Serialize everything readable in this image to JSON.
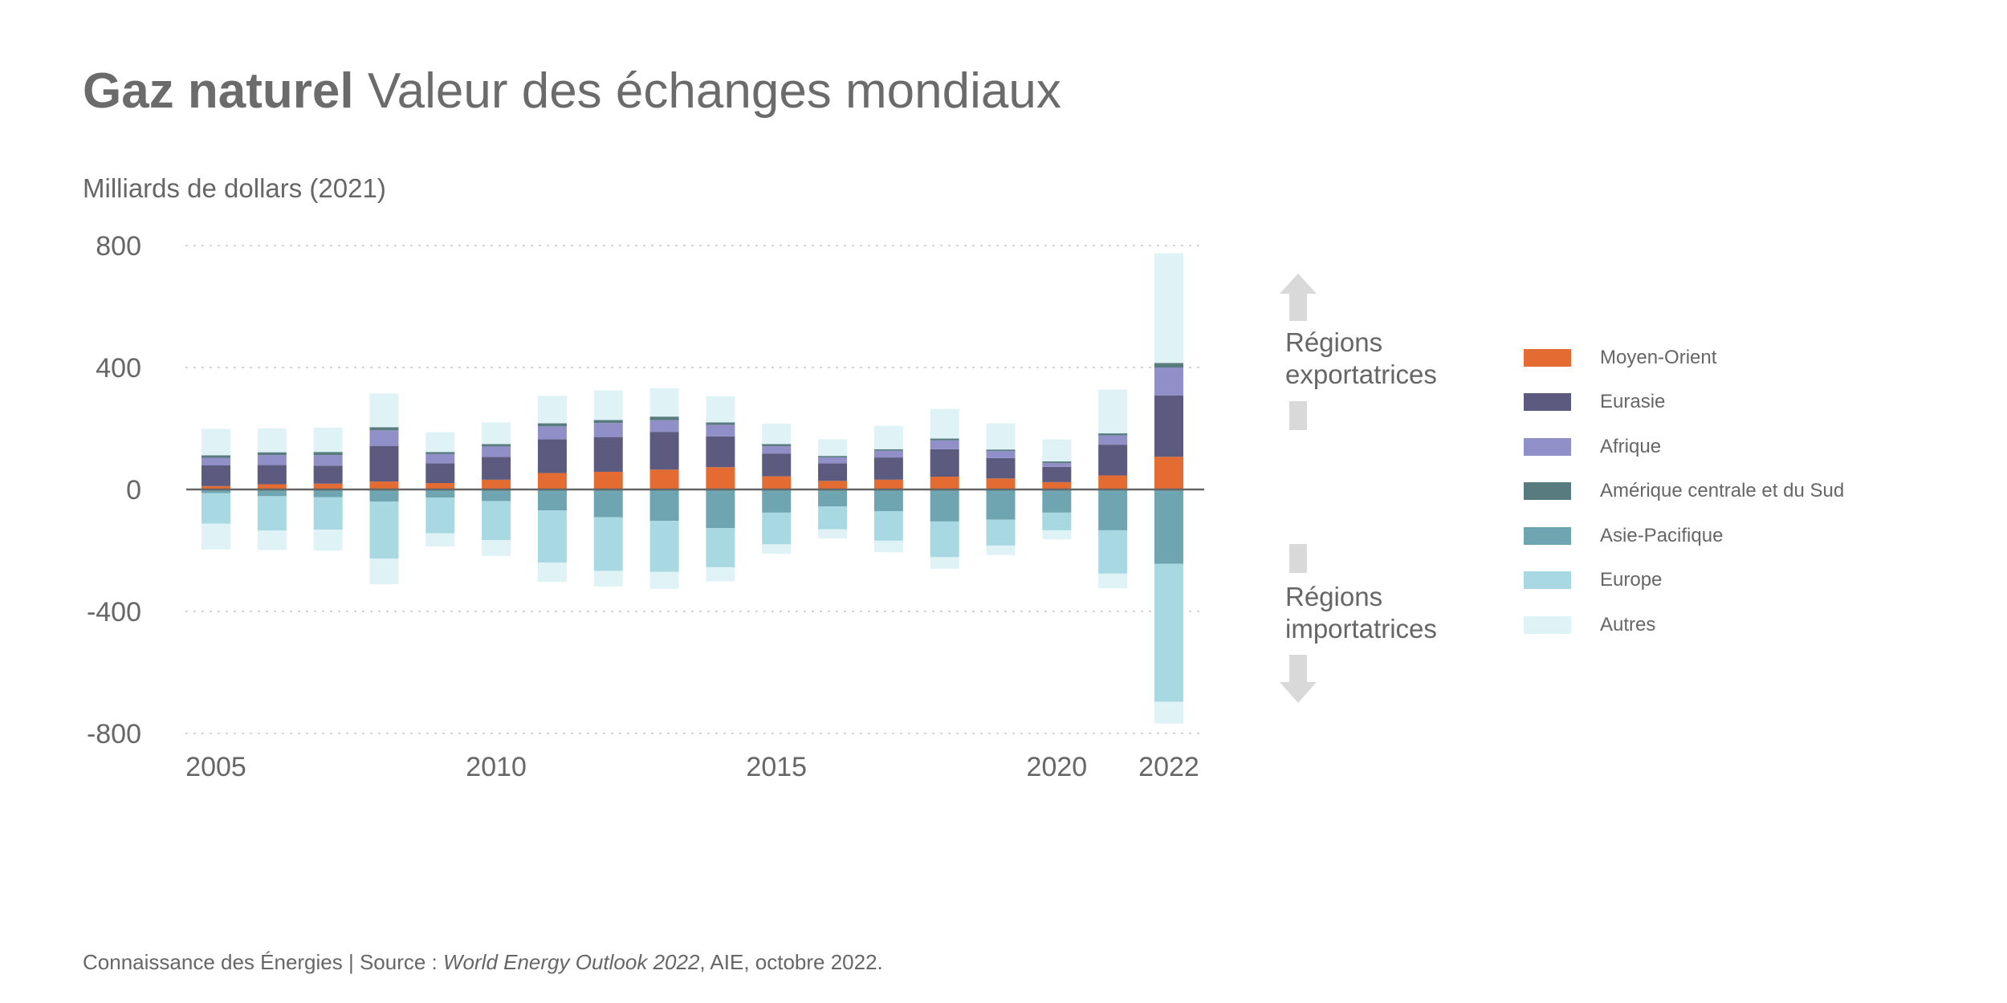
{
  "header": {
    "title_bold": "Gaz naturel",
    "title_light": "Valeur des échanges mondiaux",
    "unit": "Milliards de dollars (2021)"
  },
  "annotations": {
    "export_line1": "Régions",
    "export_line2": "exportatrices",
    "import_line1": "Régions",
    "import_line2": "importatrices"
  },
  "footer": {
    "prefix": "Connaissance des Énergies | Source : ",
    "italic": "World Energy Outlook 2022",
    "suffix": ", AIE, octobre 2022."
  },
  "chart_data": {
    "type": "bar",
    "stacked": true,
    "title": "Gaz naturel Valeur des échanges mondiaux",
    "ylabel": "Milliards de dollars (2021)",
    "xlabel": "",
    "ylim": [
      -800,
      800
    ],
    "yticks": [
      800,
      400,
      0,
      -400,
      -800
    ],
    "ytick_labels": [
      "800",
      "400",
      "0",
      "-400",
      "-800"
    ],
    "xtick_labels": [
      "2005",
      "2010",
      "2015",
      "2020",
      "2022"
    ],
    "grid": "horizontal dotted",
    "legend_position": "right",
    "categories": [
      "2005",
      "2006",
      "2007",
      "2008",
      "2009",
      "2010",
      "2011",
      "2012",
      "2013",
      "2014",
      "2015",
      "2016",
      "2017",
      "2018",
      "2019",
      "2020",
      "2021",
      "2022"
    ],
    "positive_series": [
      {
        "name": "Moyen-Orient",
        "color": "#e46c33",
        "values": [
          11,
          17,
          19,
          26,
          21,
          32,
          54,
          58,
          65,
          73,
          43,
          28,
          32,
          42,
          36,
          24,
          46,
          107
        ]
      },
      {
        "name": "Eurasie",
        "color": "#5c5a7e",
        "values": [
          68,
          63,
          59,
          117,
          65,
          75,
          111,
          114,
          124,
          101,
          75,
          58,
          73,
          90,
          67,
          50,
          101,
          201
        ]
      },
      {
        "name": "Afrique",
        "color": "#918fc8",
        "values": [
          25,
          33,
          35,
          51,
          30,
          34,
          42,
          46,
          38,
          38,
          24,
          19,
          22,
          29,
          23,
          13,
          30,
          92
        ]
      },
      {
        "name": "Amérique centrale et du Sud",
        "color": "#577b7e",
        "values": [
          8,
          9,
          10,
          10,
          7,
          8,
          10,
          10,
          12,
          8,
          7,
          5,
          5,
          6,
          5,
          5,
          7,
          15
        ]
      },
      {
        "name": "Autres",
        "color": "#dff3f6",
        "values": [
          87,
          78,
          80,
          111,
          65,
          71,
          90,
          97,
          93,
          86,
          67,
          55,
          77,
          97,
          86,
          72,
          144,
          360
        ]
      }
    ],
    "negative_series": [
      {
        "name": "Asie-Pacifique",
        "color": "#6fa5b0",
        "values": [
          -12,
          -22,
          -25,
          -40,
          -27,
          -38,
          -69,
          -91,
          -103,
          -127,
          -76,
          -56,
          -71,
          -105,
          -99,
          -76,
          -134,
          -244
        ]
      },
      {
        "name": "Europe",
        "color": "#a8d9e2",
        "values": [
          -100,
          -113,
          -107,
          -187,
          -117,
          -128,
          -171,
          -176,
          -167,
          -128,
          -104,
          -75,
          -97,
          -117,
          -85,
          -58,
          -142,
          -452
        ]
      },
      {
        "name": "Autres",
        "color": "#dff3f6",
        "values": [
          -85,
          -64,
          -69,
          -84,
          -43,
          -52,
          -63,
          -51,
          -56,
          -46,
          -31,
          -30,
          -38,
          -38,
          -31,
          -30,
          -48,
          -72
        ]
      }
    ],
    "legend": [
      {
        "name": "Moyen-Orient",
        "color": "#e46c33"
      },
      {
        "name": "Eurasie",
        "color": "#5c5a7e"
      },
      {
        "name": "Afrique",
        "color": "#918fc8"
      },
      {
        "name": "Amérique centrale et du Sud",
        "color": "#577b7e"
      },
      {
        "name": "Asie-Pacifique",
        "color": "#6fa5b0"
      },
      {
        "name": "Europe",
        "color": "#a8d9e2"
      },
      {
        "name": "Autres",
        "color": "#dff3f6"
      }
    ]
  }
}
